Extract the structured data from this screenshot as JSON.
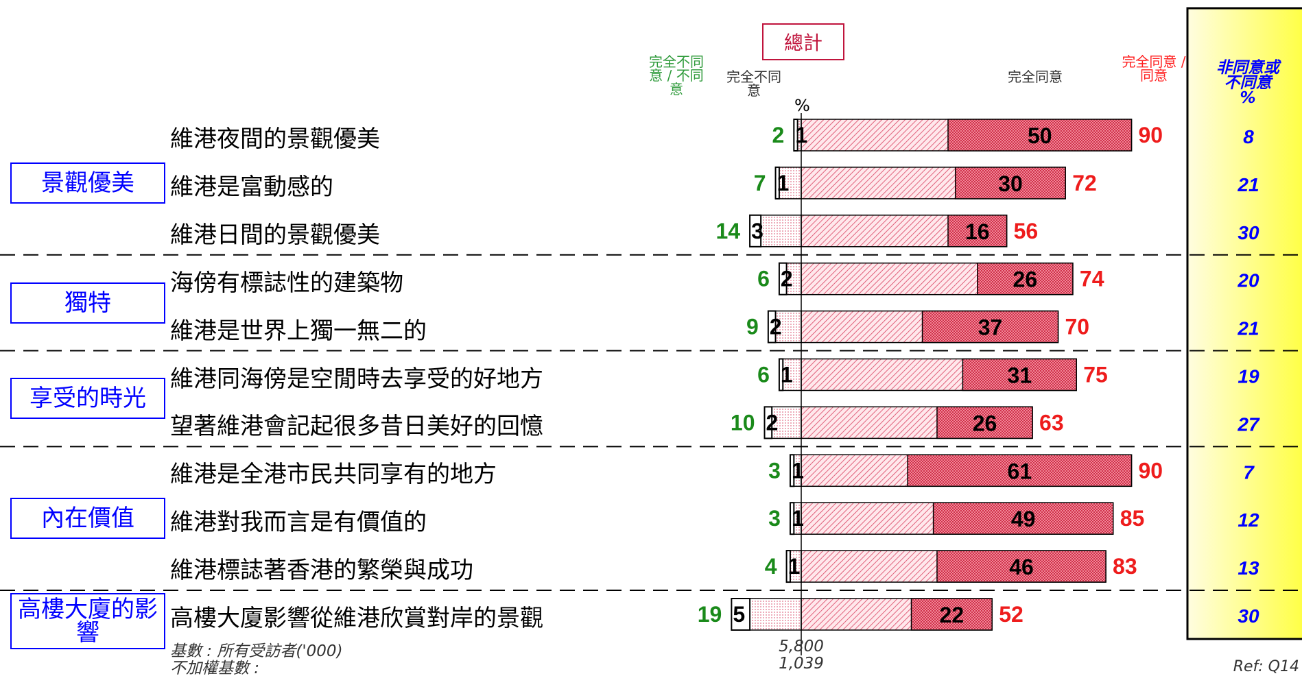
{
  "chart_data": {
    "type": "bar",
    "title": "總計",
    "unit": "%",
    "groups": [
      {
        "label": "景觀優美",
        "categories": [
          "維港夜間的景觀優美",
          "維港是富動感的",
          "維港日間的景觀優美"
        ]
      },
      {
        "label": "獨特",
        "categories": [
          "海傍有標誌性的建築物",
          "維港是世界上獨一無二的"
        ]
      },
      {
        "label": "享受的時光",
        "categories": [
          "維港同海傍是空閒時去享受的好地方",
          "望著維港會記起很多昔日美好的回憶"
        ]
      },
      {
        "label": "內在價值",
        "categories": [
          "維港是全港市民共同享有的地方",
          "維港對我而言是有價值的",
          "維港標誌著香港的繁榮與成功"
        ]
      },
      {
        "label": "高樓大廈的影響",
        "categories": [
          "高樓大廈影響從維港欣賞對岸的景觀"
        ]
      }
    ],
    "series": [
      {
        "name": "完全不同意 / 不同意",
        "color": "#008000",
        "values": [
          2,
          7,
          14,
          6,
          9,
          6,
          10,
          3,
          3,
          4,
          19
        ]
      },
      {
        "name": "完全不同意",
        "color": "#000000",
        "values": [
          1,
          1,
          3,
          2,
          2,
          1,
          2,
          1,
          1,
          1,
          5
        ]
      },
      {
        "name": "完全同意",
        "color": "#000000",
        "values": [
          50,
          30,
          16,
          26,
          37,
          31,
          26,
          61,
          49,
          46,
          22
        ]
      },
      {
        "name": "完全同意 / 同意",
        "color": "#ff0000",
        "values": [
          90,
          72,
          56,
          74,
          70,
          75,
          63,
          90,
          85,
          83,
          52
        ]
      },
      {
        "name": "非同意或不同意 %",
        "color": "#0000ff",
        "values": [
          8,
          21,
          30,
          20,
          21,
          19,
          27,
          7,
          12,
          13,
          30
        ]
      }
    ],
    "base": {
      "label": "基數 : 所有受訪者('000)",
      "value": 5800,
      "value_label": "5,800"
    },
    "unweighted_base": {
      "label": "不加權基數 :",
      "value": 1039,
      "value_label": "1,039"
    },
    "ref": "Ref: Q14"
  }
}
